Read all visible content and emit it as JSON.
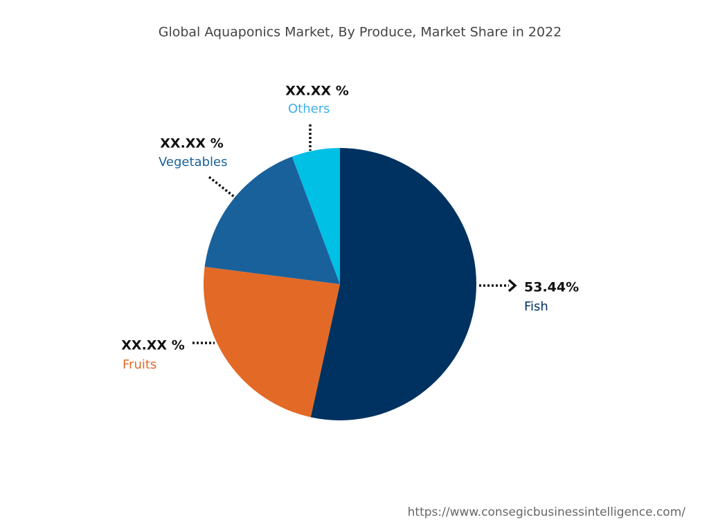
{
  "chart_data": {
    "type": "pie",
    "title": "Global Aquaponics Market, By Produce, Market Share in 2022",
    "categories": [
      "Fish",
      "Fruits",
      "Vegetables",
      "Others"
    ],
    "values": [
      53.44,
      23.6,
      17.25,
      5.71
    ],
    "value_labels": [
      "53.44%",
      "XX.XX %",
      "XX.XX %",
      "XX.XX %"
    ],
    "colors": [
      "#003261",
      "#e26a26",
      "#19619b",
      "#00c0e6"
    ],
    "source": "https://www.consegicbusinessintelligence.com/"
  }
}
